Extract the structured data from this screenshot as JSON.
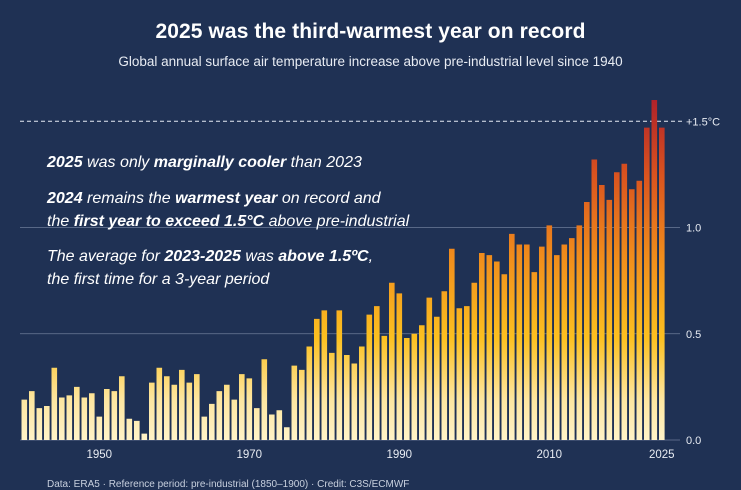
{
  "title": "2025 was the third-warmest year on record",
  "subtitle": "Global annual surface air temperature increase above pre-industrial level since 1940",
  "annotations": {
    "a1": {
      "bold1": "2025",
      "text1": " was only ",
      "bold2": "marginally cooler",
      "text2": " than 2023"
    },
    "a2": {
      "bold1": "2024",
      "text1": " remains the ",
      "bold2": "warmest year",
      "text2": " on record and"
    },
    "a3": {
      "text1": "the ",
      "bold1": "first year to exceed 1.5°C",
      "text2": " above pre-industrial"
    },
    "a4": {
      "text1": "The average for ",
      "bold1": "2023-2025",
      "text2": " was ",
      "bold2": "above 1.5ºC",
      "text3": ","
    },
    "a5": {
      "text1": "the first time for a 3-year period"
    }
  },
  "credit": "Data: ERA5 · Reference period: pre-industrial (1850–1900) · Credit: C3S/ECMWF",
  "colors": {
    "background": "#1f3154",
    "bar_low": "#fff3c8",
    "bar_mid": "#fcc020",
    "bar_orange": "#ef8a1c",
    "bar_high": "#b0222a",
    "gridline": "#6c7b98"
  },
  "chart_data": {
    "type": "bar",
    "title": "2025 was the third-warmest year on record",
    "xlabel": "",
    "ylabel": "",
    "x_ticks": [
      "1950",
      "1970",
      "1990",
      "2010",
      "2025"
    ],
    "y_ticks": [
      {
        "value": 0.0,
        "label": "0.0"
      },
      {
        "value": 0.5,
        "label": "0.5"
      },
      {
        "value": 1.0,
        "label": "1.0"
      },
      {
        "value": 1.5,
        "label": "+1.5°C"
      }
    ],
    "ylim": [
      0,
      1.6
    ],
    "threshold": {
      "value": 1.5,
      "style": "dashed"
    },
    "years": [
      1940,
      1941,
      1942,
      1943,
      1944,
      1945,
      1946,
      1947,
      1948,
      1949,
      1950,
      1951,
      1952,
      1953,
      1954,
      1955,
      1956,
      1957,
      1958,
      1959,
      1960,
      1961,
      1962,
      1963,
      1964,
      1965,
      1966,
      1967,
      1968,
      1969,
      1970,
      1971,
      1972,
      1973,
      1974,
      1975,
      1976,
      1977,
      1978,
      1979,
      1980,
      1981,
      1982,
      1983,
      1984,
      1985,
      1986,
      1987,
      1988,
      1989,
      1990,
      1991,
      1992,
      1993,
      1994,
      1995,
      1996,
      1997,
      1998,
      1999,
      2000,
      2001,
      2002,
      2003,
      2004,
      2005,
      2006,
      2007,
      2008,
      2009,
      2010,
      2011,
      2012,
      2013,
      2014,
      2015,
      2016,
      2017,
      2018,
      2019,
      2020,
      2021,
      2022,
      2023,
      2024,
      2025
    ],
    "values": [
      0.19,
      0.23,
      0.15,
      0.16,
      0.34,
      0.2,
      0.21,
      0.25,
      0.2,
      0.22,
      0.11,
      0.24,
      0.23,
      0.3,
      0.1,
      0.09,
      0.03,
      0.27,
      0.34,
      0.3,
      0.26,
      0.33,
      0.27,
      0.31,
      0.11,
      0.17,
      0.23,
      0.26,
      0.19,
      0.31,
      0.29,
      0.15,
      0.38,
      0.12,
      0.14,
      0.06,
      0.35,
      0.33,
      0.44,
      0.57,
      0.61,
      0.41,
      0.61,
      0.4,
      0.36,
      0.44,
      0.59,
      0.63,
      0.49,
      0.74,
      0.69,
      0.48,
      0.5,
      0.54,
      0.67,
      0.58,
      0.7,
      0.9,
      0.62,
      0.63,
      0.74,
      0.88,
      0.87,
      0.84,
      0.78,
      0.97,
      0.92,
      0.92,
      0.79,
      0.91,
      1.01,
      0.87,
      0.92,
      0.95,
      1.01,
      1.12,
      1.32,
      1.2,
      1.13,
      1.26,
      1.3,
      1.18,
      1.22,
      1.47,
      1.6,
      1.47
    ]
  }
}
